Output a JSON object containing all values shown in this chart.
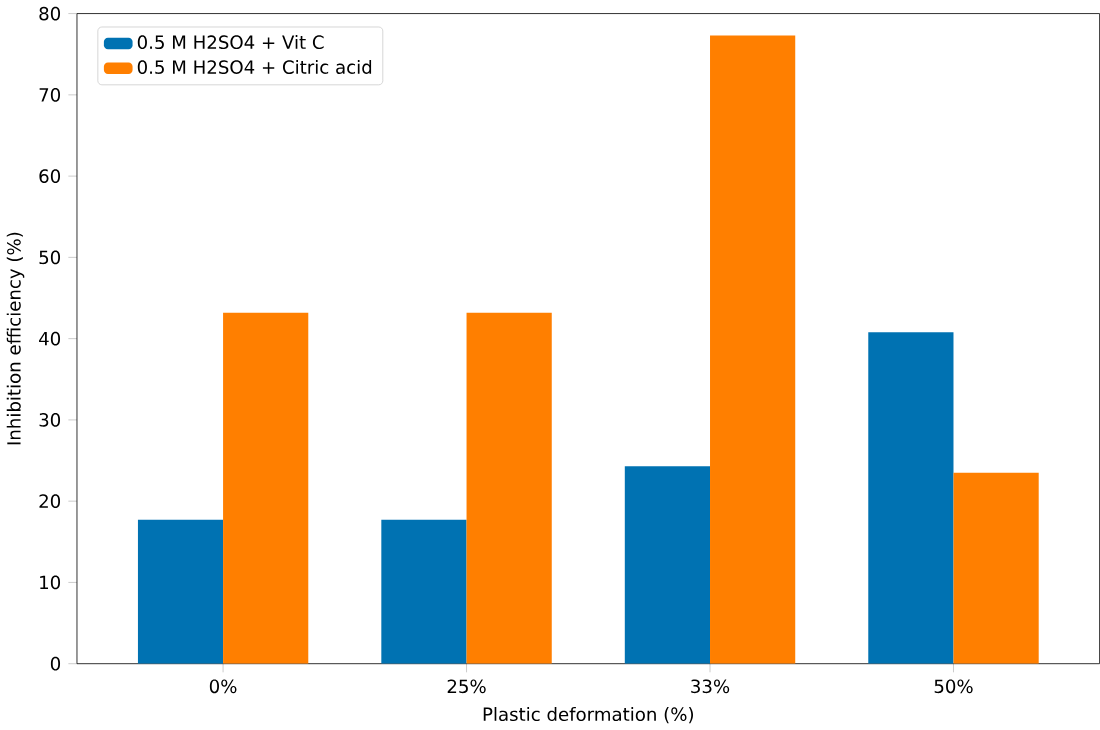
{
  "chart_data": {
    "type": "bar",
    "xlabel": "Plastic deformation (%)",
    "ylabel": "Inhibition efficiency (%)",
    "categories": [
      "0%",
      "25%",
      "33%",
      "50%"
    ],
    "series": [
      {
        "name": "0.5 M H2SO4 + Vit C",
        "color": "#0072b2",
        "values": [
          17.7,
          17.7,
          24.3,
          40.8
        ]
      },
      {
        "name": "0.5 M H2SO4 + Citric acid",
        "color": "#ff7f00",
        "values": [
          43.2,
          43.2,
          77.3,
          23.5
        ]
      }
    ],
    "ylim": [
      0,
      80
    ],
    "yticks": [
      0,
      10,
      20,
      30,
      40,
      50,
      60,
      70,
      80
    ],
    "legend": "top left",
    "grid": false
  }
}
